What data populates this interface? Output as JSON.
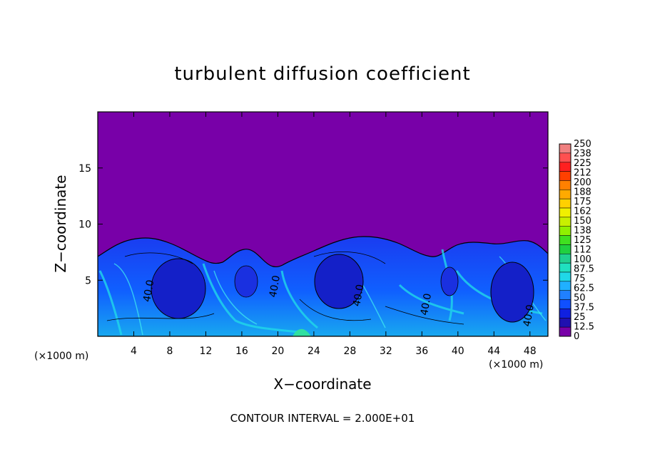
{
  "chart_data": {
    "type": "heatmap",
    "title": "turbulent diffusion coefficient",
    "xlabel": "X−coordinate",
    "ylabel": "Z−coordinate",
    "x_unit": "(×1000 m)",
    "z_unit": "(×1000 m)",
    "x_ticks": [
      "4",
      "8",
      "12",
      "16",
      "20",
      "24",
      "28",
      "32",
      "36",
      "40",
      "44",
      "48"
    ],
    "y_ticks": [
      "5",
      "10",
      "15"
    ],
    "xlim": [
      0,
      50
    ],
    "ylim": [
      0,
      20
    ],
    "footer": "CONTOUR INTERVAL = 2.000E+01",
    "contour_labels": [
      {
        "text": "40.0",
        "x": 6.0,
        "z": 4.0
      },
      {
        "text": "40.0",
        "x": 20.0,
        "z": 4.4
      },
      {
        "text": "40.0",
        "x": 29.3,
        "z": 3.6
      },
      {
        "text": "40.0",
        "x": 36.8,
        "z": 2.8
      },
      {
        "text": "40.0",
        "x": 48.2,
        "z": 1.8
      }
    ],
    "colorbar": {
      "labels": [
        "250",
        "238",
        "225",
        "212",
        "200",
        "188",
        "175",
        "162",
        "150",
        "138",
        "125",
        "112",
        "100",
        "87.5",
        "75",
        "62.5",
        "50",
        "37.5",
        "25",
        "12.5",
        "0"
      ],
      "colors": [
        "#f08080",
        "#ff5050",
        "#ff2020",
        "#ff4000",
        "#ff8000",
        "#ffaa00",
        "#ffd000",
        "#f0f000",
        "#c8f000",
        "#90f000",
        "#40e020",
        "#20d040",
        "#20d090",
        "#20e0c0",
        "#20d8e8",
        "#20b0ff",
        "#2080ff",
        "#1050ff",
        "#1020e0",
        "#2010b0",
        "#7800a8"
      ]
    }
  }
}
